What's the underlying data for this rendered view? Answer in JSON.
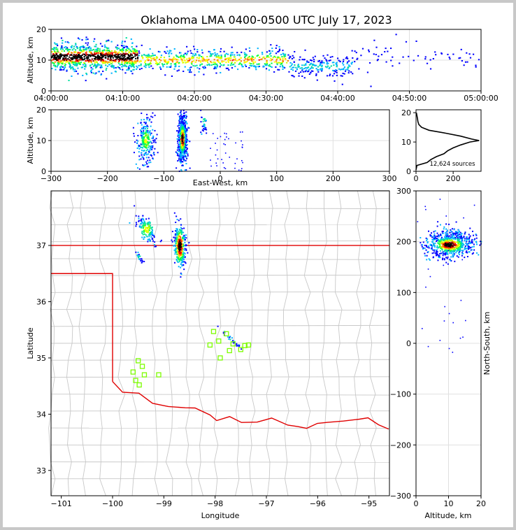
{
  "title": "Oklahoma LMA 0400-0500 UTC July 17, 2023",
  "chart_data": [
    {
      "panel": "time-height",
      "type": "scatter",
      "xlabel": "",
      "ylabel": "Altitude, km",
      "x_ticks": [
        "04:00:00",
        "04:10:00",
        "04:20:00",
        "04:30:00",
        "04:40:00",
        "04:50:00",
        "05:00:00"
      ],
      "ylim": [
        0,
        20
      ],
      "y_ticks": [
        "0",
        "10",
        "20"
      ],
      "grid": true,
      "density_bands": [
        {
          "t_start_min": 0,
          "t_end_min": 12,
          "alt_center_km": 11,
          "alt_spread_km": 5,
          "weight": 1.0
        },
        {
          "t_start_min": 12,
          "t_end_min": 33,
          "alt_center_km": 10,
          "alt_spread_km": 4,
          "weight": 0.6
        },
        {
          "t_start_min": 33,
          "t_end_min": 42,
          "alt_center_km": 8,
          "alt_spread_km": 4,
          "weight": 0.2
        },
        {
          "t_start_min": 42,
          "t_end_min": 60,
          "alt_center_km": 11,
          "alt_spread_km": 6,
          "weight": 0.05
        }
      ]
    },
    {
      "panel": "east-west-altitude",
      "type": "scatter",
      "xlabel": "East-West, km",
      "ylabel": "Altitude, km",
      "xlim": [
        -300,
        300
      ],
      "x_ticks": [
        "−300",
        "−200",
        "−100",
        "0",
        "100",
        "200",
        "300"
      ],
      "ylim": [
        0,
        20
      ],
      "y_ticks": [
        "0",
        "10",
        "20"
      ],
      "grid": true
    },
    {
      "panel": "altitude-histogram",
      "type": "line",
      "xlim": [
        0,
        350
      ],
      "x_ticks": [
        "0",
        "200"
      ],
      "ylim": [
        0,
        21
      ],
      "y_ticks": [
        "0",
        "10",
        "20"
      ],
      "annotation": "12,624 sources",
      "profile_alt_km": [
        0.5,
        2,
        3,
        4,
        5,
        6,
        7,
        8,
        9,
        10,
        10.5,
        11,
        12,
        13,
        14,
        15,
        16,
        17,
        18,
        19,
        20
      ],
      "profile_counts": [
        0,
        5,
        60,
        80,
        110,
        150,
        170,
        200,
        240,
        290,
        340,
        300,
        240,
        160,
        70,
        30,
        15,
        10,
        8,
        5,
        2
      ]
    },
    {
      "panel": "plan-view",
      "type": "scatter",
      "xlabel": "Longitude",
      "ylabel": "Latitude",
      "xlim": [
        -101.2,
        -94.6
      ],
      "x_ticks": [
        "−101",
        "−100",
        "−99",
        "−98",
        "−97",
        "−96",
        "−95"
      ],
      "ylim": [
        32.55,
        37.97
      ],
      "y_ticks": [
        "33",
        "34",
        "35",
        "36",
        "37"
      ],
      "stations": [
        [
          -99.6,
          34.75
        ],
        [
          -99.5,
          34.95
        ],
        [
          -99.42,
          34.85
        ],
        [
          -99.38,
          34.7
        ],
        [
          -99.55,
          34.6
        ],
        [
          -99.48,
          34.52
        ],
        [
          -99.1,
          34.7
        ],
        [
          -98.03,
          35.47
        ],
        [
          -98.1,
          35.23
        ],
        [
          -97.93,
          35.3
        ],
        [
          -97.78,
          35.43
        ],
        [
          -97.72,
          35.13
        ],
        [
          -97.65,
          35.25
        ],
        [
          -97.5,
          35.15
        ],
        [
          -97.42,
          35.22
        ],
        [
          -97.35,
          35.23
        ],
        [
          -97.9,
          35.0
        ]
      ]
    },
    {
      "panel": "north-south-altitude",
      "type": "scatter",
      "xlabel": "Altitude, km",
      "ylabel": "North-South, km",
      "xlim": [
        0,
        20
      ],
      "x_ticks": [
        "0",
        "10",
        "20"
      ],
      "ylim": [
        -300,
        300
      ],
      "y_ticks": [
        "−300",
        "−200",
        "−100",
        "0",
        "100",
        "200",
        "300"
      ],
      "grid": true
    }
  ],
  "colors": {
    "border": "#e00000",
    "county": "#c8c8c8",
    "station": "#7cfc00",
    "grid": "#e0e0e0",
    "density_palette": [
      "#0000ff",
      "#00b4ff",
      "#00e0a0",
      "#00ff40",
      "#c8ff00",
      "#ffff00",
      "#ff8000",
      "#ff0000",
      "#800000",
      "#000000"
    ]
  }
}
